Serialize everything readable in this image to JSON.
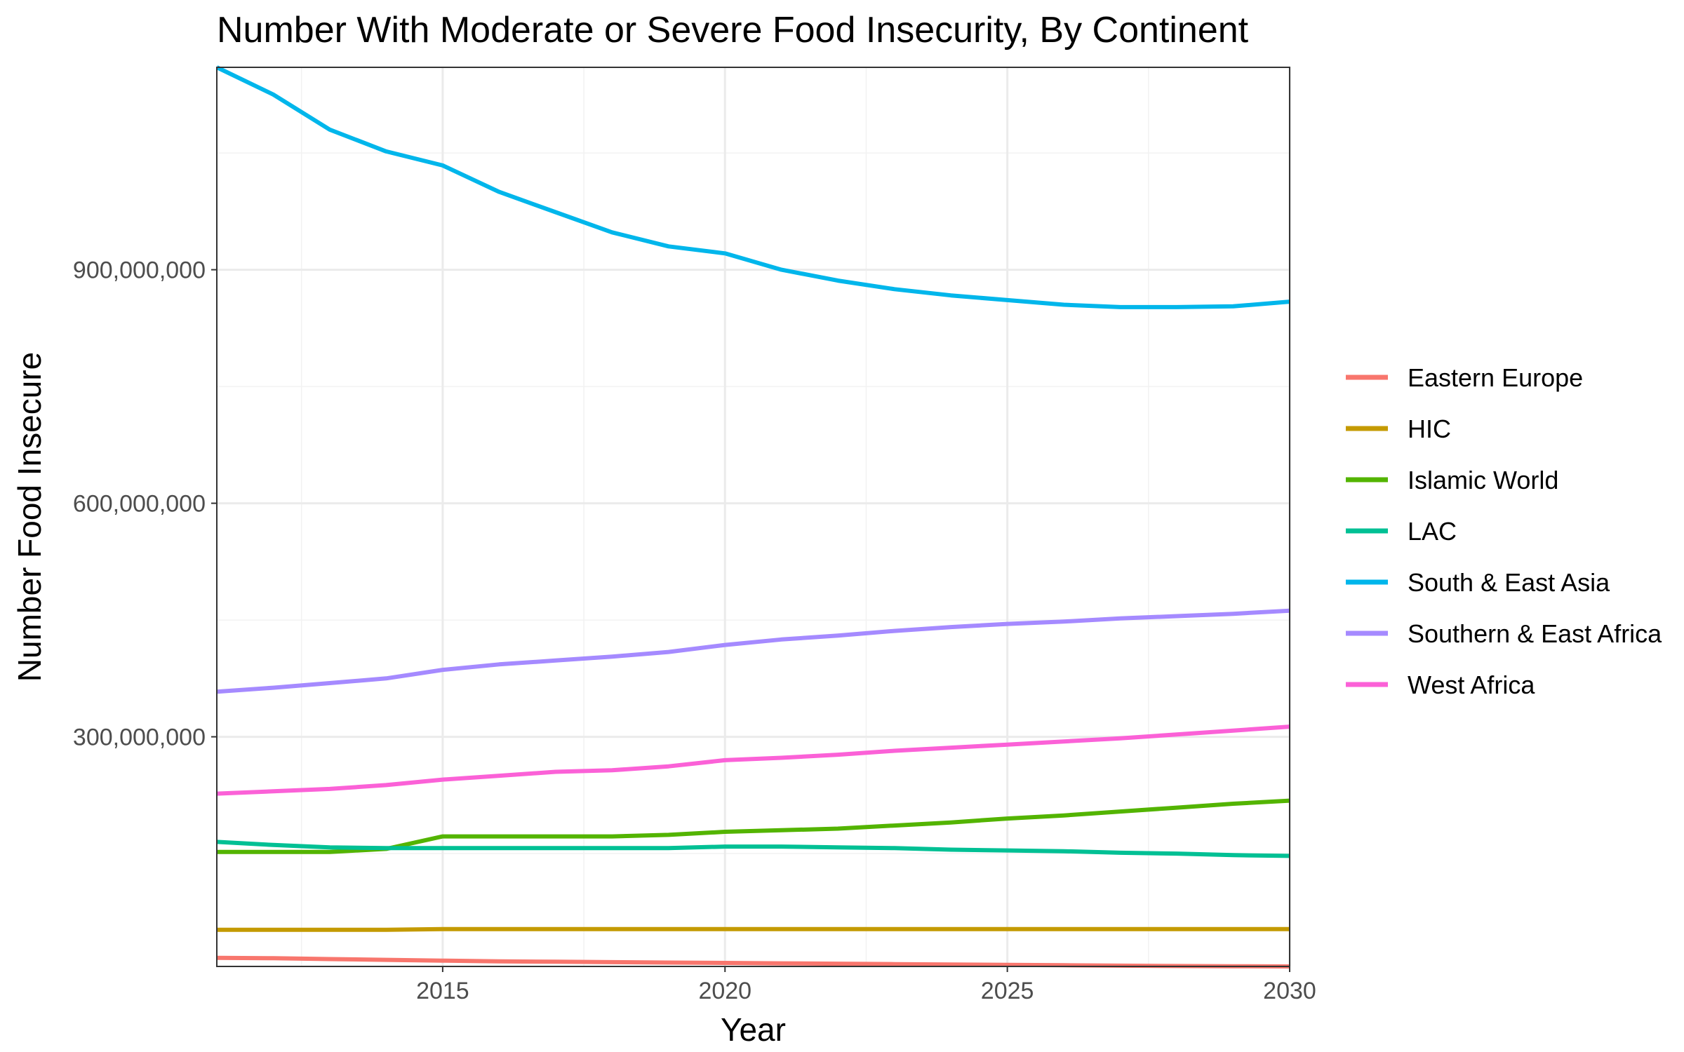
{
  "chart_data": {
    "type": "line",
    "title": "Number With Moderate or Severe Food Insecurity, By Continent",
    "xlabel": "Year",
    "ylabel": "Number Food Insecure",
    "xlim": [
      2011,
      2030
    ],
    "ylim": [
      5000000,
      1160000000
    ],
    "x_ticks": [
      2015,
      2020,
      2025,
      2030
    ],
    "x_tick_labels": [
      "2015",
      "2020",
      "2025",
      "2030"
    ],
    "y_ticks": [
      300000000,
      600000000,
      900000000
    ],
    "y_tick_labels": [
      "300,000,000",
      "600,000,000",
      "900,000,000"
    ],
    "x_minor_ticks": [
      2012.5,
      2017.5,
      2022.5,
      2027.5
    ],
    "y_minor_ticks": [
      150000000,
      450000000,
      750000000,
      1050000000
    ],
    "grid": true,
    "legend_position": "right",
    "x": [
      2011,
      2012,
      2013,
      2014,
      2015,
      2016,
      2017,
      2018,
      2019,
      2020,
      2021,
      2022,
      2023,
      2024,
      2025,
      2026,
      2027,
      2028,
      2029,
      2030
    ],
    "series": [
      {
        "name": "Eastern Europe",
        "color": "#F8766D",
        "values": [
          16000000,
          15500000,
          14500000,
          13500000,
          12500000,
          11500000,
          11000000,
          10500000,
          10000000,
          9500000,
          9000000,
          8500000,
          8000000,
          7500000,
          7000000,
          6500000,
          6000000,
          5500000,
          5300000,
          5000000
        ]
      },
      {
        "name": "HIC",
        "color": "#C49A00",
        "values": [
          52000000,
          52000000,
          52000000,
          52000000,
          53000000,
          53000000,
          53000000,
          53000000,
          53000000,
          53000000,
          53000000,
          53000000,
          53000000,
          53000000,
          53000000,
          53000000,
          53000000,
          53000000,
          53000000,
          53000000
        ]
      },
      {
        "name": "Islamic World",
        "color": "#53B400",
        "values": [
          152000000,
          152000000,
          152000000,
          156000000,
          172000000,
          172000000,
          172000000,
          172000000,
          174000000,
          178000000,
          180000000,
          182000000,
          186000000,
          190000000,
          195000000,
          199000000,
          204000000,
          209000000,
          214000000,
          218000000
        ]
      },
      {
        "name": "LAC",
        "color": "#00C094",
        "values": [
          165000000,
          161000000,
          158000000,
          157000000,
          157000000,
          157000000,
          157000000,
          157000000,
          157000000,
          159000000,
          159000000,
          158000000,
          157000000,
          155000000,
          154000000,
          153000000,
          151000000,
          150000000,
          148000000,
          147000000
        ]
      },
      {
        "name": "South & East Asia",
        "color": "#00B6EB",
        "values": [
          1160000000,
          1125000000,
          1080000000,
          1052000000,
          1034000000,
          1000000000,
          974000000,
          948000000,
          930000000,
          921000000,
          900000000,
          886000000,
          875000000,
          867000000,
          861000000,
          855000000,
          852000000,
          852000000,
          853000000,
          859000000
        ]
      },
      {
        "name": "Southern & East Africa",
        "color": "#A58AFF",
        "values": [
          358000000,
          363000000,
          369000000,
          375000000,
          386000000,
          393000000,
          398000000,
          403000000,
          409000000,
          418000000,
          425000000,
          430000000,
          436000000,
          441000000,
          445000000,
          448000000,
          452000000,
          455000000,
          458000000,
          462000000
        ]
      },
      {
        "name": "West Africa",
        "color": "#FB61D7",
        "values": [
          227000000,
          230000000,
          233000000,
          238000000,
          245000000,
          250000000,
          255000000,
          257000000,
          262000000,
          270000000,
          273000000,
          277000000,
          282000000,
          286000000,
          290000000,
          294000000,
          298000000,
          303000000,
          308000000,
          313000000
        ]
      }
    ]
  }
}
